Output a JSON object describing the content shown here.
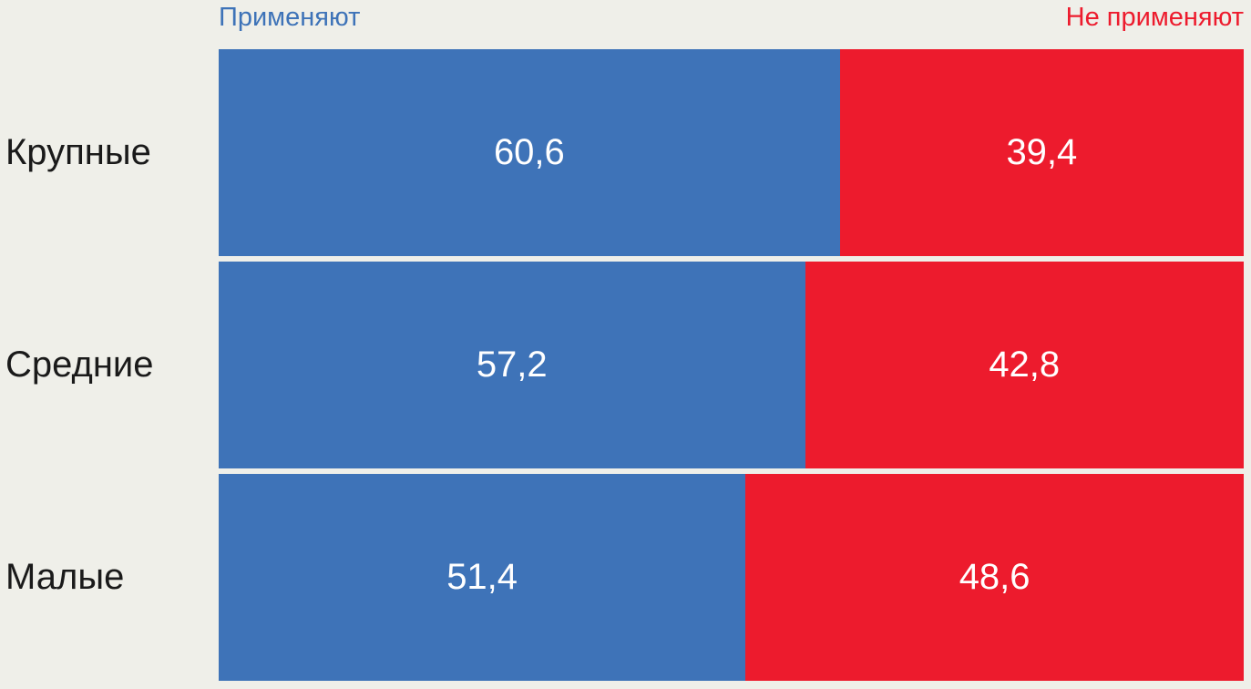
{
  "chart_data": {
    "type": "bar",
    "subtype": "horizontal-stacked-100",
    "title": "",
    "categories": [
      "Крупные",
      "Средние",
      "Малые"
    ],
    "series": [
      {
        "name": "Применяют",
        "color": "#3E73B8",
        "values": [
          60.6,
          57.2,
          51.4
        ]
      },
      {
        "name": "Не применяют",
        "color": "#ED1B2D",
        "values": [
          39.4,
          42.8,
          48.6
        ]
      }
    ],
    "value_labels": [
      [
        "60,6",
        "39,4"
      ],
      [
        "57,2",
        "42,8"
      ],
      [
        "51,4",
        "48,6"
      ]
    ],
    "value_format": "decimal-comma",
    "xlim": [
      0,
      100
    ],
    "legend_position": "top",
    "grid": false,
    "colors": {
      "background": "#EFEFE9",
      "category_label": "#1A1A1A",
      "value_label": "#FFFFFF",
      "legend_left": "#3E73B8",
      "legend_right": "#ED1B2D"
    }
  }
}
